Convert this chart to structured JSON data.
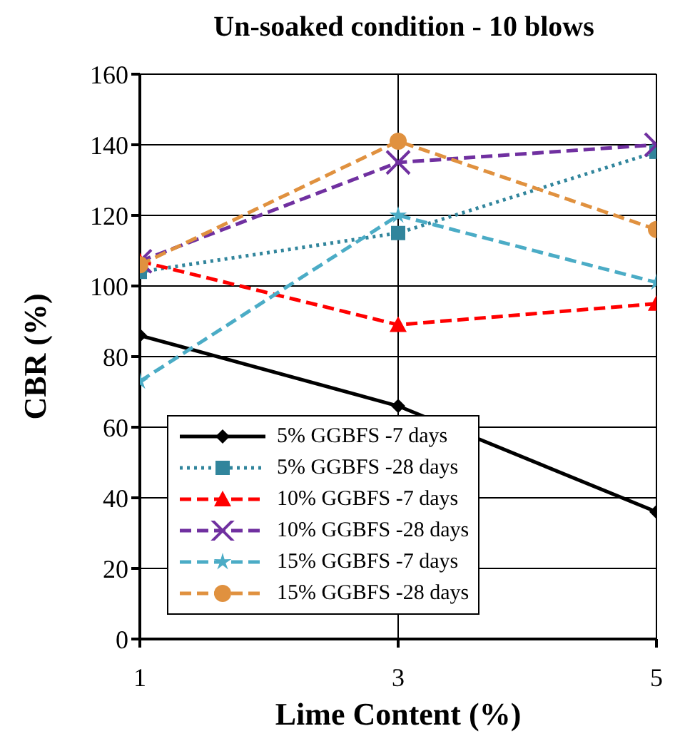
{
  "chart_data": {
    "type": "line",
    "title": "Un-soaked condition - 10 blows",
    "xlabel": "Lime Content (%)",
    "ylabel": "CBR (%)",
    "x": [
      1,
      3,
      5
    ],
    "xlim": [
      1,
      5
    ],
    "xticks": [
      1,
      3,
      5
    ],
    "ylim": [
      0,
      160
    ],
    "yticks": [
      0,
      20,
      40,
      60,
      80,
      100,
      120,
      140,
      160
    ],
    "grid": true,
    "legend": "bottom left",
    "series": [
      {
        "name": "5% GGBFS -7 days",
        "color": "#000000",
        "marker": "diamond",
        "line_style": "solid",
        "values": [
          86,
          66,
          36
        ]
      },
      {
        "name": "5% GGBFS -28 days",
        "color": "#31859c",
        "marker": "square",
        "line_style": "dotted",
        "values": [
          104,
          115,
          138
        ]
      },
      {
        "name": "10% GGBFS -7 days",
        "color": "#ff0000",
        "marker": "triangle",
        "line_style": "dashed",
        "values": [
          107,
          89,
          95
        ]
      },
      {
        "name": "10% GGBFS -28 days",
        "color": "#7030a0",
        "marker": "cross",
        "line_style": "dashed",
        "values": [
          107,
          135,
          140
        ]
      },
      {
        "name": "15% GGBFS -7 days",
        "color": "#4bacc6",
        "marker": "star",
        "line_style": "dashed",
        "values": [
          73,
          120,
          101
        ]
      },
      {
        "name": "15% GGBFS -28 days",
        "color": "#e0913f",
        "marker": "circle",
        "line_style": "dashed",
        "values": [
          106,
          141,
          116
        ]
      }
    ]
  }
}
